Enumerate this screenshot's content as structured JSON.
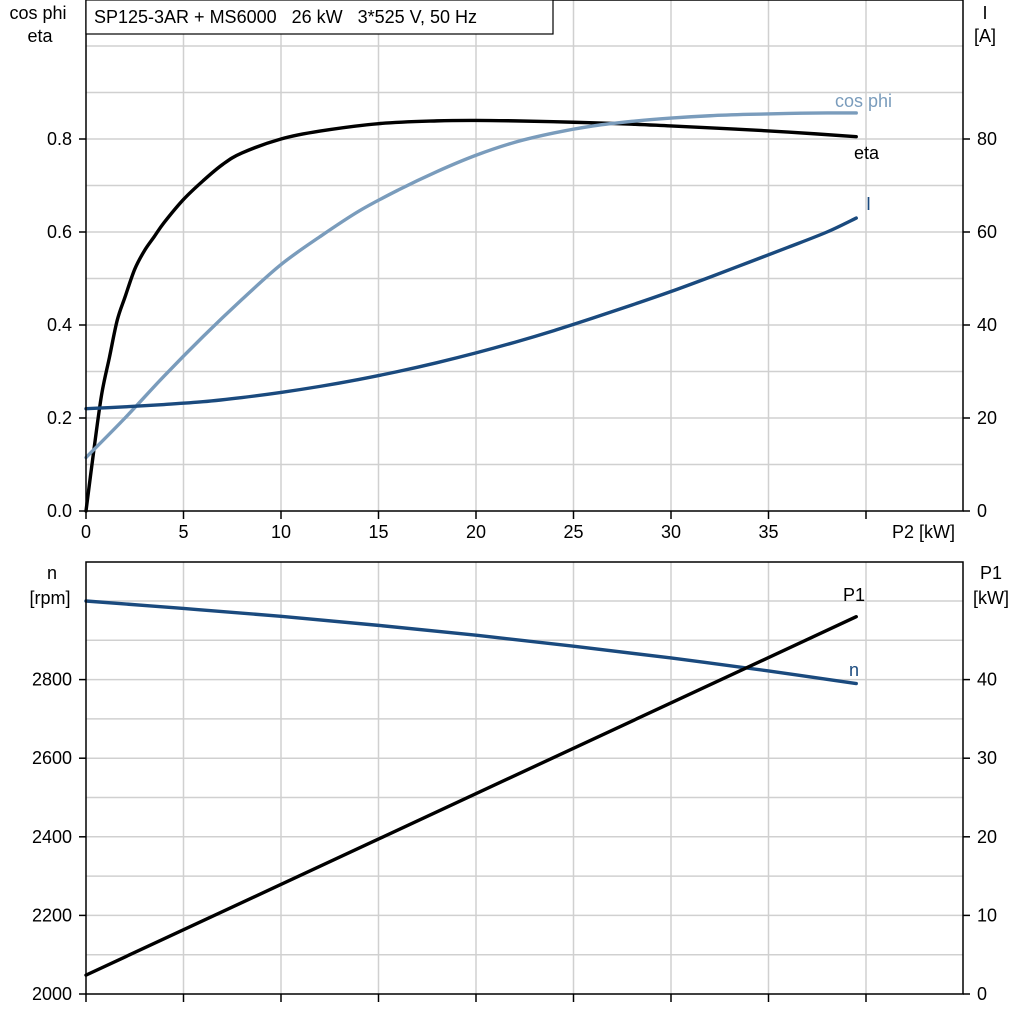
{
  "title": "SP125-3AR + MS6000   26 kW   3*525 V, 50 Hz",
  "colors": {
    "eta": "#000000",
    "cos_phi": "#7a9cbc",
    "I": "#1a4a7e",
    "n": "#1a4a7e",
    "P1": "#000000"
  },
  "chart_data": [
    {
      "type": "line",
      "panel": "top",
      "xlabel": "P2 [kW]",
      "ylabel_left": [
        "cos phi",
        "eta"
      ],
      "ylabel_right": [
        "I",
        "[A]"
      ],
      "xlim": [
        0,
        40
      ],
      "ylim_left": [
        0,
        1.0
      ],
      "ylim_right": [
        0,
        100
      ],
      "xticks": [
        "0",
        "5",
        "10",
        "15",
        "20",
        "25",
        "30",
        "35"
      ],
      "yticks_left": [
        "0.0",
        "0.2",
        "0.4",
        "0.6",
        "0.8"
      ],
      "yticks_right": [
        "0",
        "20",
        "40",
        "60",
        "80"
      ],
      "grid": true,
      "series": [
        {
          "name": "eta",
          "axis": "left",
          "color": "#000000",
          "x": [
            0,
            0.4,
            0.8,
            1.2,
            1.6,
            2.0,
            2.5,
            3,
            3.5,
            4,
            5,
            6,
            7,
            8,
            10,
            12,
            15,
            18,
            20,
            22,
            25,
            28,
            30,
            33,
            36,
            39.5
          ],
          "y": [
            0.0,
            0.13,
            0.25,
            0.33,
            0.41,
            0.46,
            0.52,
            0.56,
            0.59,
            0.62,
            0.67,
            0.71,
            0.745,
            0.77,
            0.8,
            0.817,
            0.833,
            0.839,
            0.84,
            0.839,
            0.836,
            0.832,
            0.828,
            0.822,
            0.815,
            0.805
          ]
        },
        {
          "name": "cos phi",
          "axis": "left",
          "color": "#7a9cbc",
          "x": [
            0,
            2,
            4,
            6,
            8,
            10,
            12,
            14,
            16,
            18,
            20,
            22,
            24,
            26,
            28,
            30,
            32,
            34,
            36,
            38,
            39.5
          ],
          "y": [
            0.115,
            0.2,
            0.29,
            0.375,
            0.455,
            0.53,
            0.59,
            0.645,
            0.69,
            0.73,
            0.765,
            0.793,
            0.813,
            0.828,
            0.838,
            0.845,
            0.85,
            0.853,
            0.855,
            0.856,
            0.856
          ]
        },
        {
          "name": "I",
          "axis": "right",
          "color": "#1a4a7e",
          "x": [
            0,
            2,
            4,
            6,
            8,
            10,
            12,
            14,
            16,
            18,
            20,
            22,
            24,
            26,
            28,
            30,
            32,
            34,
            36,
            38,
            39.5
          ],
          "y": [
            22,
            22.4,
            22.9,
            23.5,
            24.4,
            25.5,
            26.8,
            28.3,
            30,
            31.9,
            34,
            36.3,
            38.8,
            41.5,
            44.3,
            47.2,
            50.3,
            53.5,
            56.7,
            60,
            63
          ]
        }
      ]
    },
    {
      "type": "line",
      "panel": "bottom",
      "ylabel_left": [
        "n",
        "[rpm]"
      ],
      "ylabel_right": [
        "P1",
        "[kW]"
      ],
      "xlim": [
        0,
        40
      ],
      "ylim_left": [
        2000,
        3100
      ],
      "ylim_right": [
        0,
        55
      ],
      "yticks_left": [
        "2000",
        "2200",
        "2400",
        "2600",
        "2800"
      ],
      "yticks_right": [
        "0",
        "10",
        "20",
        "30",
        "40"
      ],
      "grid": true,
      "series": [
        {
          "name": "n",
          "axis": "left",
          "color": "#1a4a7e",
          "x": [
            0,
            5,
            10,
            15,
            20,
            25,
            30,
            35,
            39.5
          ],
          "y": [
            3000,
            2981,
            2961,
            2938,
            2913,
            2885,
            2855,
            2822,
            2790
          ]
        },
        {
          "name": "P1",
          "axis": "right",
          "color": "#000000",
          "x": [
            0,
            39.5
          ],
          "y": [
            2.4,
            48
          ]
        }
      ]
    }
  ]
}
